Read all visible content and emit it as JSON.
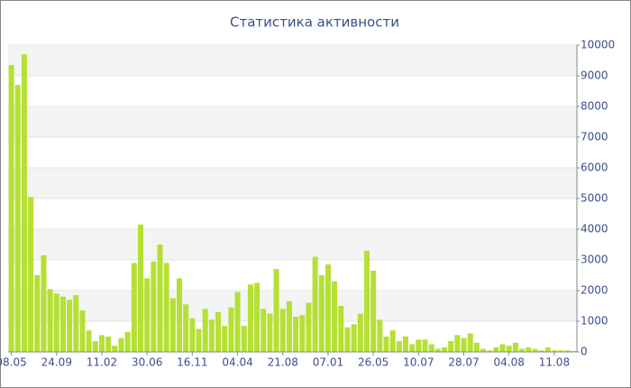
{
  "chart_data": {
    "type": "bar",
    "title": "Статистика активности",
    "categories": [
      "08.05",
      null,
      null,
      null,
      null,
      null,
      null,
      "24.09",
      null,
      null,
      null,
      null,
      null,
      null,
      "11.02",
      null,
      null,
      null,
      null,
      null,
      null,
      "30.06",
      null,
      null,
      null,
      null,
      null,
      null,
      "16.11",
      null,
      null,
      null,
      null,
      null,
      null,
      "04.04",
      null,
      null,
      null,
      null,
      null,
      null,
      "21.08",
      null,
      null,
      null,
      null,
      null,
      null,
      "07.01",
      null,
      null,
      null,
      null,
      null,
      null,
      "26.05",
      null,
      null,
      null,
      null,
      null,
      null,
      "10.07",
      null,
      null,
      null,
      null,
      null,
      null,
      "28.07",
      null,
      null,
      null,
      null,
      null,
      null,
      "04.08",
      null,
      null,
      null,
      null,
      null,
      null,
      "11.08",
      null,
      null,
      null
    ],
    "values": [
      9350,
      8700,
      9700,
      5050,
      2500,
      3150,
      2050,
      1900,
      1800,
      1700,
      1850,
      1350,
      700,
      350,
      550,
      500,
      200,
      450,
      650,
      2900,
      4150,
      2400,
      2950,
      3500,
      2900,
      1750,
      2400,
      1550,
      1100,
      750,
      1400,
      1050,
      1300,
      850,
      1450,
      1950,
      850,
      2200,
      2250,
      1400,
      1250,
      2700,
      1400,
      1650,
      1150,
      1200,
      1600,
      3100,
      2500,
      2850,
      2300,
      1500,
      800,
      900,
      1250,
      3300,
      2650,
      1050,
      500,
      700,
      350,
      500,
      250,
      400,
      400,
      250,
      100,
      150,
      350,
      550,
      450,
      600,
      300,
      100,
      50,
      150,
      250,
      200,
      300,
      100,
      150,
      100,
      50,
      150,
      50,
      50,
      50,
      30
    ],
    "color": "#b5e034",
    "ylim": [
      0,
      10000
    ],
    "yticks": [
      0,
      1000,
      2000,
      3000,
      4000,
      5000,
      6000,
      7000,
      8000,
      9000,
      10000
    ],
    "grid": true
  }
}
